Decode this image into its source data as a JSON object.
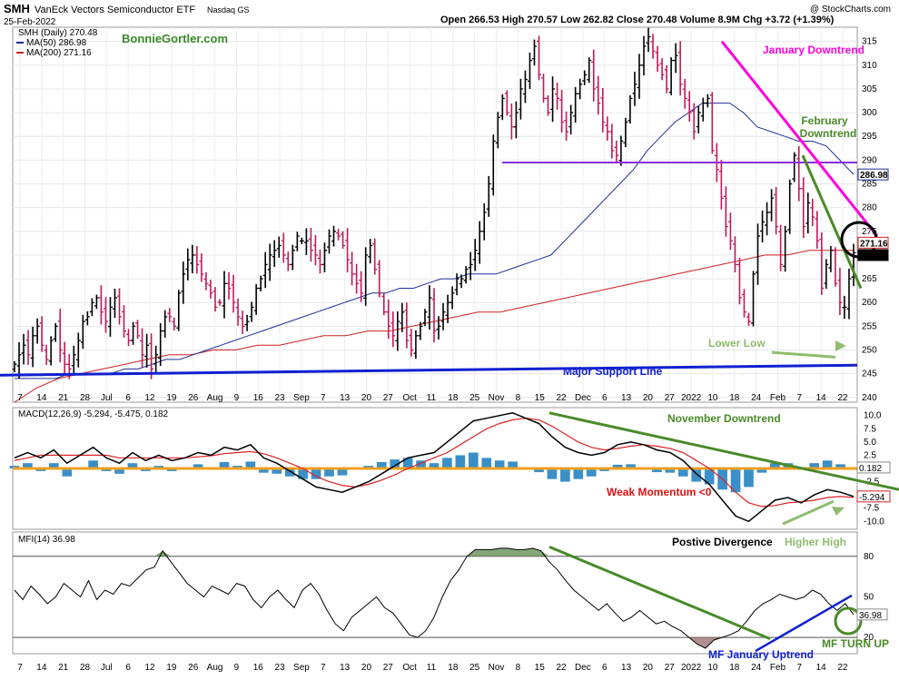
{
  "header": {
    "symbol": "SMH",
    "name": "VanEck Vectors Semiconductor ETF",
    "exchange": "Nasdaq GS",
    "date": "25-Feb-2022",
    "quote": "Open 266.53  High 270.57  Low 262.82  Close 270.48  Volume 8.9M  Chg +3.72 (+1.39%)",
    "watermark": "@ StockCharts.com",
    "author": "BonnieGortler.com"
  },
  "legend": {
    "symbol_line": "SMH (Daily) 270.48",
    "ma50": "MA(50) 286.98",
    "ma200": "MA(200) 271.16"
  },
  "colors": {
    "up": "#000000",
    "down": "#c2185b",
    "ma50": "#1f2f9a",
    "ma200": "#cc2020",
    "support": "#1020d0",
    "trend_green": "#4a8a2a",
    "trend_magenta": "#ff00dd",
    "purple": "#8a2be2",
    "hist": "#3a8fc8",
    "zero_line": "#f0a020",
    "light_green": "#8fbc6f"
  },
  "x_ticks": [
    "7",
    "14",
    "21",
    "28",
    "Jul",
    "6",
    "12",
    "19",
    "26",
    "Aug",
    "9",
    "16",
    "23",
    "Sep",
    "7",
    "13",
    "20",
    "27",
    "Oct",
    "11",
    "18",
    "25",
    "Nov",
    "8",
    "15",
    "22",
    "Dec",
    "6",
    "13",
    "20",
    "27",
    "2022",
    "10",
    "18",
    "24",
    "Feb",
    "7",
    "14",
    "22"
  ],
  "chart_data": [
    {
      "type": "candlestick",
      "panel": "price",
      "ylim": [
        239,
        318
      ],
      "yticks": [
        240,
        245,
        250,
        255,
        260,
        265,
        270,
        275,
        280,
        285,
        290,
        295,
        300,
        305,
        310,
        315
      ],
      "last_value_labels": [
        "286.98",
        "271.16",
        "270.48"
      ],
      "ohlc_close_series": [
        247,
        249,
        251,
        249,
        253,
        255,
        251,
        248,
        252,
        255,
        250,
        247,
        246,
        249,
        252,
        256,
        257,
        260,
        261,
        258,
        256,
        259,
        261,
        257,
        254,
        252,
        255,
        253,
        249,
        251,
        246,
        249,
        254,
        257,
        257,
        255,
        262,
        266,
        269,
        270,
        268,
        266,
        264,
        262,
        259,
        260,
        264,
        263,
        260,
        257,
        255,
        256,
        259,
        263,
        265,
        268,
        270,
        271,
        272,
        270,
        268,
        271,
        274,
        273,
        273,
        271,
        270,
        268,
        271,
        274,
        275,
        274,
        272,
        269,
        266,
        264,
        262,
        270,
        272,
        267,
        262,
        258,
        255,
        253,
        256,
        258,
        252,
        250,
        253,
        255,
        258,
        261,
        254,
        255,
        258,
        260,
        262,
        265,
        265,
        267,
        268,
        271,
        275,
        279,
        285,
        294,
        299,
        303,
        300,
        297,
        300,
        305,
        307,
        311,
        314,
        308,
        303,
        300,
        305,
        303,
        298,
        296,
        300,
        304,
        306,
        308,
        311,
        305,
        302,
        298,
        296,
        292,
        291,
        294,
        298,
        303,
        306,
        310,
        314,
        316,
        313,
        310,
        308,
        305,
        311,
        312,
        306,
        303,
        300,
        296,
        300,
        302,
        303,
        292,
        288,
        282,
        276,
        273,
        268,
        261,
        258,
        256,
        266,
        274,
        277,
        279,
        282,
        276,
        268,
        275,
        285,
        291,
        284,
        276,
        281,
        278,
        273,
        263,
        268,
        271,
        264,
        260,
        259,
        265,
        270.48
      ],
      "ma50": [
        244,
        244,
        244,
        244,
        245,
        245,
        245,
        245,
        246,
        246,
        247,
        248,
        248,
        249,
        250,
        251,
        252,
        253,
        254,
        255,
        256,
        257,
        258,
        259,
        260,
        261,
        262,
        262,
        263,
        263,
        264,
        265,
        265,
        266,
        266,
        266,
        267,
        268,
        269,
        270,
        273,
        276,
        279,
        282,
        285,
        288,
        292,
        295,
        298,
        300,
        302,
        302,
        302,
        300,
        297,
        296,
        295,
        294,
        294,
        293,
        290,
        287
      ],
      "ma200": [
        239,
        242,
        244,
        245,
        246,
        247,
        248,
        249,
        249,
        250,
        250,
        251,
        251,
        252,
        253,
        253,
        254,
        254,
        255,
        256,
        257,
        258,
        258,
        259,
        260,
        261,
        262,
        263,
        264,
        265,
        266,
        267,
        268,
        269,
        270,
        270,
        271,
        271,
        271
      ],
      "support_line": {
        "start": 244.7,
        "end": 246.8
      },
      "resistance_level": 289.5,
      "january_downtrend": {
        "start": 315,
        "end": 274
      },
      "february_downtrend": {
        "start": 291,
        "end": 263
      },
      "lower_low_arrow": {
        "from": 249.5,
        "to": 248.5
      }
    },
    {
      "type": "line",
      "panel": "macd",
      "title": "MACD(12,26,9) -5.294, -5.475, 0.182",
      "ylim": [
        -11.5,
        11.5
      ],
      "yticks": [
        10.0,
        7.5,
        5.0,
        2.5,
        -2.5,
        -7.5,
        -10.0
      ],
      "last_value_labels": [
        "0.182",
        "-5.294"
      ],
      "series": [
        {
          "name": "MACD",
          "values": [
            2.0,
            3.0,
            2.0,
            3.5,
            1.0,
            2.5,
            4.0,
            2.0,
            1.0,
            3.0,
            1.5,
            2.5,
            1.5,
            2.0,
            3.0,
            2.5,
            4.0,
            3.5,
            4.5,
            2.0,
            1.0,
            -0.5,
            -2.0,
            -3.5,
            -4.0,
            -4.5,
            -3.5,
            -2.5,
            -1.0,
            0.5,
            2.0,
            2.5,
            3.0,
            5.0,
            7.0,
            9.0,
            9.5,
            10.0,
            10.5,
            9.5,
            8.5,
            6.0,
            4.0,
            3.0,
            2.5,
            3.0,
            4.5,
            5.0,
            4.5,
            3.5,
            3.0,
            1.5,
            -1.0,
            -3.0,
            -6.0,
            -9.0,
            -10.0,
            -8.0,
            -6.0,
            -5.5,
            -6.5,
            -5.0,
            -4.0,
            -4.5,
            -5.294
          ]
        },
        {
          "name": "Signal",
          "values": [
            1.5,
            2.0,
            2.5,
            2.5,
            2.5,
            2.5,
            2.5,
            2.5,
            2.0,
            2.0,
            2.0,
            2.0,
            2.0,
            2.0,
            2.2,
            2.4,
            2.8,
            3.0,
            3.2,
            2.8,
            2.0,
            1.0,
            0.0,
            -1.5,
            -2.5,
            -3.2,
            -3.5,
            -3.0,
            -2.2,
            -1.2,
            0.0,
            1.0,
            2.0,
            3.0,
            4.5,
            6.0,
            7.5,
            8.5,
            9.2,
            9.5,
            9.2,
            8.0,
            6.5,
            5.0,
            4.0,
            3.5,
            3.8,
            4.2,
            4.5,
            4.2,
            3.8,
            3.0,
            1.5,
            0.0,
            -2.0,
            -4.5,
            -6.5,
            -7.2,
            -7.0,
            -6.5,
            -6.3,
            -6.0,
            -5.5,
            -5.3,
            -5.475
          ]
        }
      ],
      "histogram": [
        0.5,
        1.0,
        -0.5,
        1.0,
        -1.5,
        0.0,
        1.5,
        -0.5,
        -1.0,
        1.0,
        -0.5,
        0.5,
        -0.5,
        0.0,
        0.8,
        0.1,
        1.2,
        0.5,
        1.3,
        -0.8,
        -1.0,
        -1.5,
        -2.0,
        -2.0,
        -1.5,
        -1.3,
        0.0,
        0.5,
        1.2,
        1.7,
        2.0,
        1.5,
        1.0,
        2.0,
        2.5,
        3.0,
        2.0,
        1.5,
        1.3,
        0.0,
        -0.7,
        -2.0,
        -2.5,
        -2.0,
        -1.5,
        -0.5,
        0.7,
        0.8,
        0.0,
        -0.7,
        -0.8,
        -1.5,
        -2.5,
        -3.0,
        -4.0,
        -4.5,
        -3.5,
        -0.8,
        1.0,
        1.0,
        -0.2,
        1.0,
        1.5,
        0.8,
        0.182
      ],
      "november_downtrend": {
        "start": 10.5,
        "end": -4.0
      }
    },
    {
      "type": "line",
      "panel": "mfi",
      "title": "MFI(14) 36.98",
      "ylim": [
        8,
        98
      ],
      "yticks": [
        80,
        50,
        20
      ],
      "last_value_labels": [
        "36.98"
      ],
      "levels": [
        80,
        20
      ],
      "series": [
        {
          "name": "MFI",
          "values": [
            55,
            48,
            58,
            52,
            45,
            50,
            60,
            55,
            50,
            62,
            48,
            55,
            52,
            60,
            58,
            64,
            70,
            72,
            84,
            76,
            68,
            60,
            55,
            50,
            58,
            55,
            52,
            60,
            58,
            48,
            42,
            50,
            55,
            48,
            42,
            55,
            60,
            52,
            40,
            30,
            25,
            35,
            40,
            45,
            50,
            42,
            38,
            30,
            22,
            20,
            25,
            35,
            50,
            62,
            70,
            80,
            85,
            85,
            85,
            86,
            86,
            85,
            85,
            86,
            84,
            76,
            70,
            62,
            55,
            50,
            45,
            40,
            45,
            38,
            32,
            35,
            40,
            35,
            30,
            32,
            28,
            25,
            20,
            15,
            12,
            18,
            20,
            22,
            25,
            32,
            40,
            45,
            48,
            52,
            50,
            48,
            50,
            55,
            52,
            45,
            40,
            45,
            36.98
          ]
        }
      ],
      "downtrend": {
        "start": 87,
        "end": 19
      },
      "uptrend": {
        "start": 10,
        "end": 51
      }
    }
  ],
  "annotations": {
    "january_downtrend": "January Downtrend",
    "february_downtrend_1": "February",
    "february_downtrend_2": "Downtrend",
    "lower_low": "Lower Low",
    "major_support": "Major Support Line",
    "november_downtrend": "November Downtrend",
    "weak_momentum": "Weak Momentum <0",
    "positive_divergence": "Postive Divergence",
    "higher_high": "Higher High",
    "mf_uptrend": "MF January Uptrend",
    "mf_turn_up": "MF TURN UP"
  }
}
